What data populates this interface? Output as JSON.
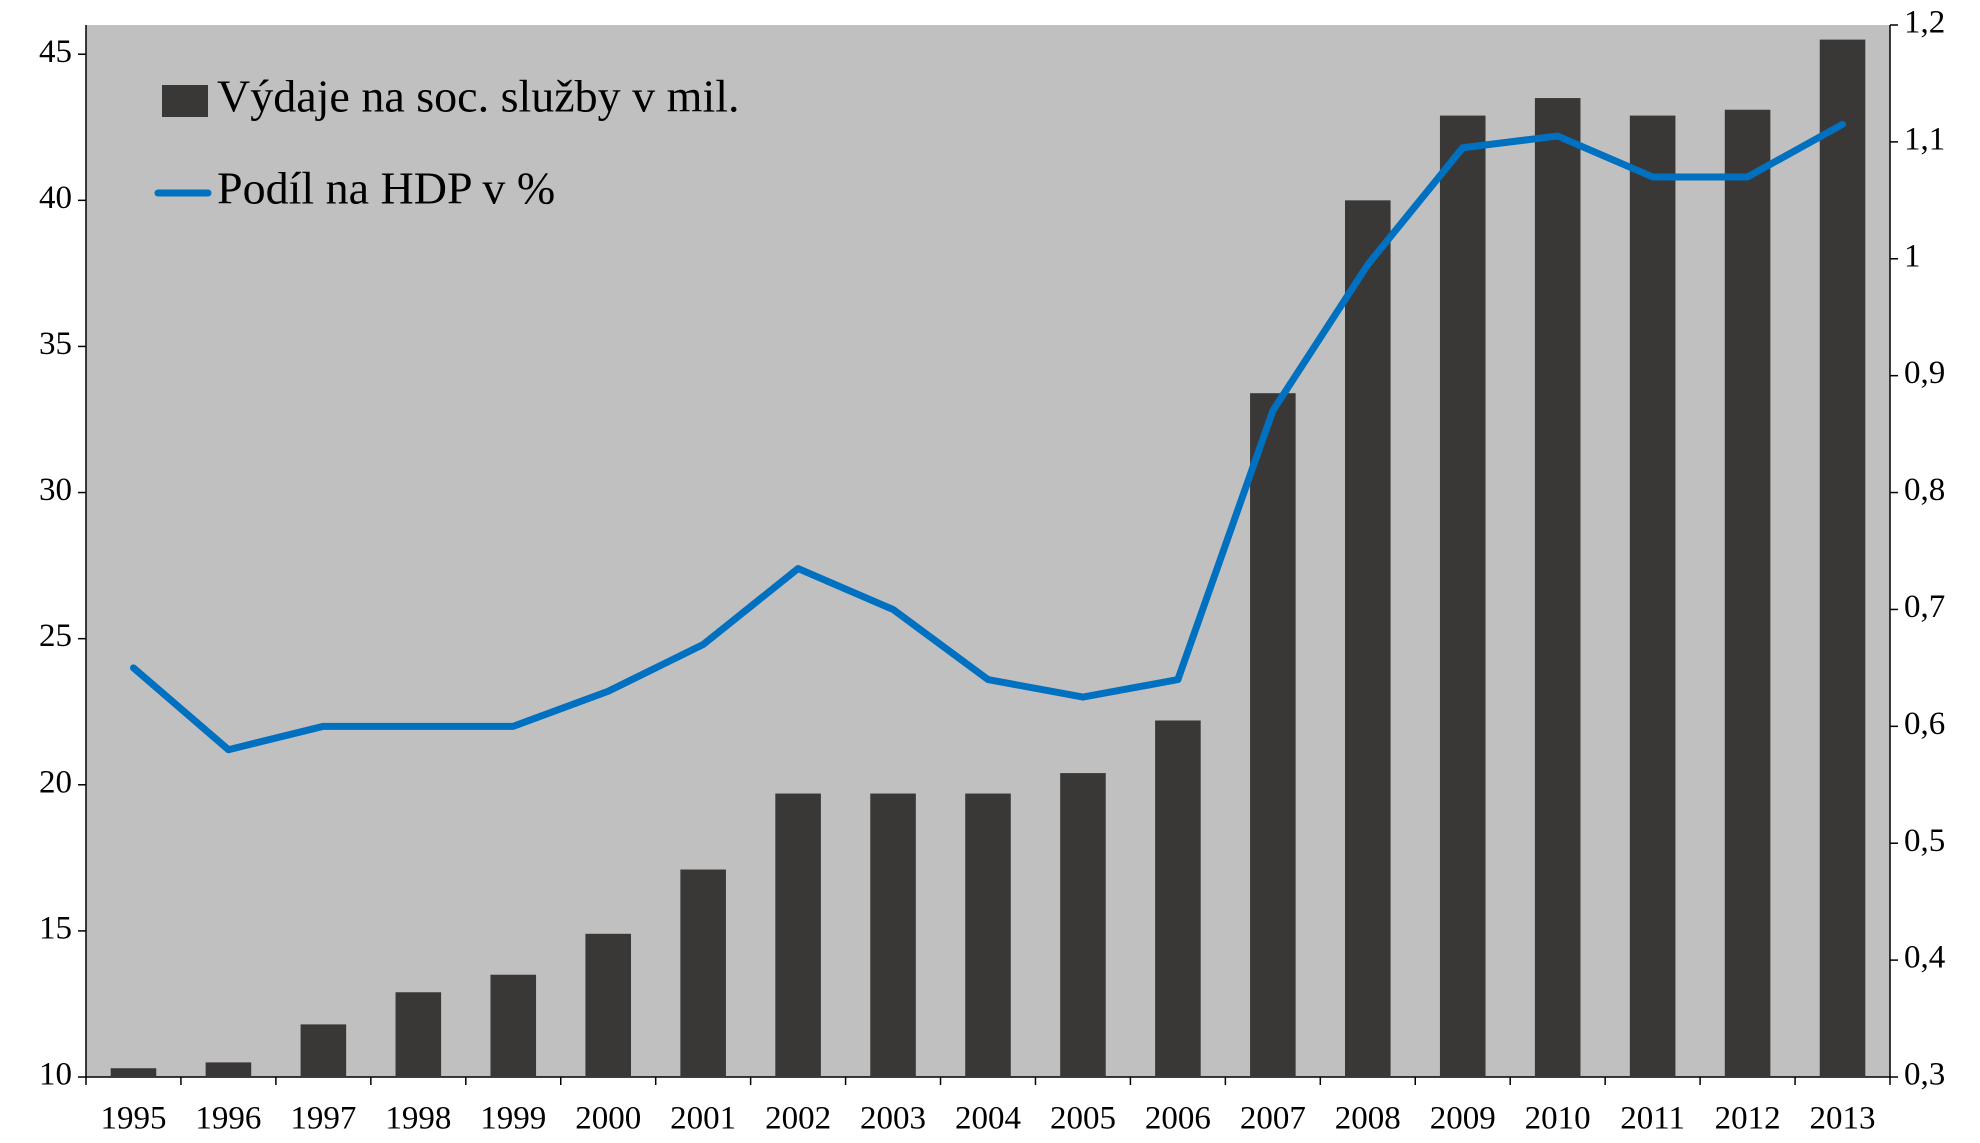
{
  "chart_data": {
    "type": "bar_line",
    "categories": [
      "1995",
      "1996",
      "1997",
      "1998",
      "1999",
      "2000",
      "2001",
      "2002",
      "2003",
      "2004",
      "2005",
      "2006",
      "2007",
      "2008",
      "2009",
      "2010",
      "2011",
      "2012",
      "2013"
    ],
    "series": [
      {
        "name": "Výdaje na soc. služby v mil.",
        "type": "bar",
        "color": "#3a3836",
        "values": [
          10.3,
          10.5,
          11.8,
          12.9,
          13.5,
          14.9,
          17.1,
          19.7,
          19.7,
          19.7,
          20.4,
          22.2,
          33.4,
          40.0,
          42.9,
          43.5,
          42.9,
          43.1,
          45.5
        ]
      },
      {
        "name": "Podíl na HDP v %",
        "type": "line",
        "axis": "y2",
        "color": "#0070c0",
        "values": [
          0.65,
          0.58,
          0.6,
          0.6,
          0.6,
          0.63,
          0.67,
          0.735,
          0.7,
          0.64,
          0.625,
          0.64,
          0.87,
          0.995,
          1.095,
          1.105,
          1.07,
          1.07,
          1.115
        ]
      }
    ],
    "ylim": [
      10,
      46
    ],
    "yticks": [
      10,
      15,
      20,
      25,
      30,
      35,
      40,
      45
    ],
    "y2lim": [
      0.3,
      1.2
    ],
    "y2ticks": [
      {
        "value": 0.3,
        "label": "0,3"
      },
      {
        "value": 0.4,
        "label": "0,4"
      },
      {
        "value": 0.5,
        "label": "0,5"
      },
      {
        "value": 0.6,
        "label": "0,6"
      },
      {
        "value": 0.7,
        "label": "0,7"
      },
      {
        "value": 0.8,
        "label": "0,8"
      },
      {
        "value": 0.9,
        "label": "0,9"
      },
      {
        "value": 1,
        "label": "1"
      },
      {
        "value": 1.1,
        "label": "1,1"
      },
      {
        "value": 1.2,
        "label": "1,2"
      }
    ],
    "plot_background": "#c0c0c0",
    "grid": false,
    "legend": "upper left"
  }
}
